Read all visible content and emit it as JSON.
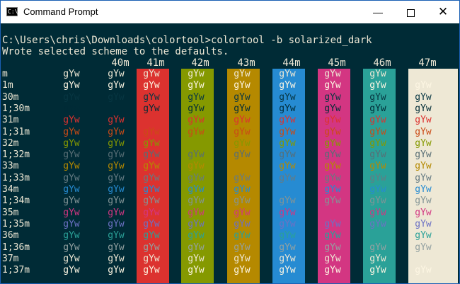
{
  "window": {
    "title": "Command Prompt",
    "icon_text": "C:\\",
    "minimize_glyph": "—",
    "close_glyph": "✕"
  },
  "console": {
    "line1": "C:\\Users\\chris\\Downloads\\colortool>colortool -b solarized_dark",
    "line2": "Wrote selected scheme to the defaults."
  },
  "sample_text": "gYw",
  "headers": [
    "40m",
    "41m",
    "42m",
    "43m",
    "44m",
    "45m",
    "46m",
    "47m"
  ],
  "background_colors": [
    "#002b36",
    "#dc322f",
    "#859900",
    "#b58900",
    "#268bd2",
    "#d33682",
    "#2aa198",
    "#eee8d5"
  ],
  "rows": [
    {
      "label": "m",
      "fg": "#eee8d5"
    },
    {
      "label": "1m",
      "fg": "#fdf6e3"
    },
    {
      "label": "30m",
      "fg": "#073642"
    },
    {
      "label": "1;30m",
      "fg": "#002b36"
    },
    {
      "label": "31m",
      "fg": "#dc322f"
    },
    {
      "label": "1;31m",
      "fg": "#cb4b16"
    },
    {
      "label": "32m",
      "fg": "#859900"
    },
    {
      "label": "1;32m",
      "fg": "#586e75"
    },
    {
      "label": "33m",
      "fg": "#b58900"
    },
    {
      "label": "1;33m",
      "fg": "#657b83"
    },
    {
      "label": "34m",
      "fg": "#268bd2"
    },
    {
      "label": "1;34m",
      "fg": "#839496"
    },
    {
      "label": "35m",
      "fg": "#d33682"
    },
    {
      "label": "1;35m",
      "fg": "#6c71c4"
    },
    {
      "label": "36m",
      "fg": "#2aa198"
    },
    {
      "label": "1;36m",
      "fg": "#93a1a1"
    },
    {
      "label": "37m",
      "fg": "#eee8d5"
    },
    {
      "label": "1;37m",
      "fg": "#fdf6e3"
    }
  ],
  "hidden_cells": {
    "1;30m": [
      0
    ],
    "31m": [
      1
    ],
    "32m": [
      2
    ],
    "33m": [
      3
    ],
    "34m": [
      4
    ],
    "35m": [
      5
    ],
    "36m": [
      6
    ],
    "37m": [
      7
    ]
  }
}
